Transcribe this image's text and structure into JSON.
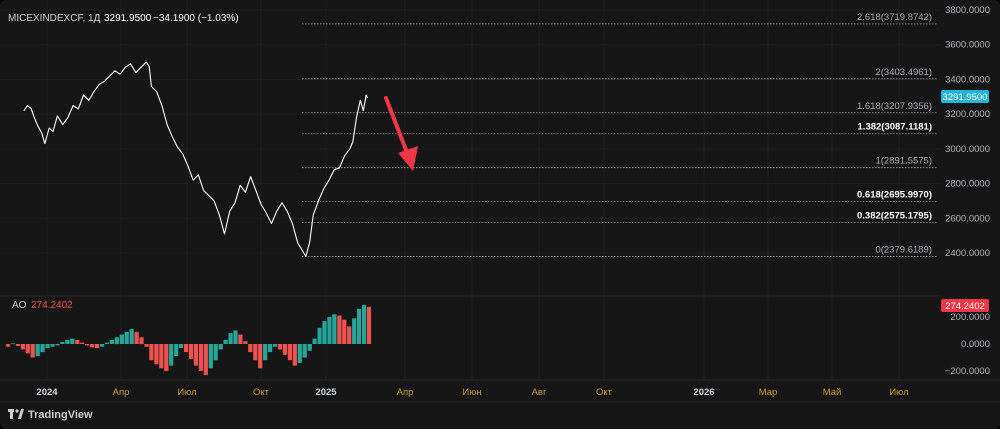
{
  "legend": {
    "symbol": "MICEXINDEXCF, 1Д",
    "price": "3291.9500",
    "change": "−34.1900 (−1.03%)"
  },
  "indicator": {
    "name": "AO",
    "value": "274.2402"
  },
  "price_axis": {
    "ticks": [
      "3800.0000",
      "3600.0000",
      "3400.0000",
      "3200.0000",
      "3000.0000",
      "2800.0000",
      "2600.0000",
      "2400.0000"
    ],
    "last_price_tag": "3291.9500"
  },
  "ao_axis": {
    "ticks": [
      "200.0000",
      "0.0000",
      "−200.0000"
    ],
    "value_tag": "274.2402"
  },
  "time_axis": {
    "labels": [
      "2024",
      "Апр",
      "Июл",
      "Окт",
      "2025",
      "Апр",
      "Июн",
      "Авг",
      "Окт",
      "2026",
      "Мар",
      "Май",
      "Июл"
    ],
    "bold": [
      "2024",
      "2025",
      "2026"
    ]
  },
  "fib_levels": [
    {
      "label": "2.618(3719.8742)",
      "value": 3719.8742,
      "bold": false
    },
    {
      "label": "2(3403.4961)",
      "value": 3403.4961,
      "bold": false
    },
    {
      "label": "1.618(3207.9356)",
      "value": 3207.9356,
      "bold": false
    },
    {
      "label": "1.382(3087.1181)",
      "value": 3087.1181,
      "bold": true
    },
    {
      "label": "1(2891.5575)",
      "value": 2891.5575,
      "bold": false
    },
    {
      "label": "0.618(2695.9970)",
      "value": 2695.997,
      "bold": true
    },
    {
      "label": "0.382(2575.1795)",
      "value": 2575.1795,
      "bold": true
    },
    {
      "label": "0(2379.6189)",
      "value": 2379.6189,
      "bold": false
    }
  ],
  "brand": "TradingView",
  "colors": {
    "background": "#161616",
    "price_line": "#ffffff",
    "fib_line": "#9aa0a6",
    "arrow": "#f23645",
    "ao_up": "#26a69a",
    "ao_down": "#ef5350",
    "last_price_tag": "#22b5d6",
    "ao_tag": "#f23645",
    "axis_text": "#b2b5be",
    "time_label": "#d19b2f"
  },
  "chart_data": {
    "type": "line",
    "series": [
      {
        "x": [
          "2023-12-01",
          "2023-12-06",
          "2023-12-11",
          "2023-12-15",
          "2023-12-20",
          "2023-12-25",
          "2023-12-29",
          "2024-01-04",
          "2024-01-09",
          "2024-01-15",
          "2024-01-22",
          "2024-01-29",
          "2024-02-05",
          "2024-02-12",
          "2024-02-19",
          "2024-02-26",
          "2024-03-04",
          "2024-03-11",
          "2024-03-18",
          "2024-03-25",
          "2024-04-01",
          "2024-04-08",
          "2024-04-15",
          "2024-04-22",
          "2024-04-29",
          "2024-05-06",
          "2024-05-13",
          "2024-05-17",
          "2024-05-20",
          "2024-05-27",
          "2024-06-03",
          "2024-06-10",
          "2024-06-17",
          "2024-06-24",
          "2024-07-01",
          "2024-07-08",
          "2024-07-15",
          "2024-07-22",
          "2024-07-29",
          "2024-08-05",
          "2024-08-12",
          "2024-08-19",
          "2024-08-26",
          "2024-09-02",
          "2024-09-09",
          "2024-09-16",
          "2024-09-23",
          "2024-09-30",
          "2024-10-07",
          "2024-10-14",
          "2024-10-21",
          "2024-10-28",
          "2024-11-04",
          "2024-11-11",
          "2024-11-18",
          "2024-11-25",
          "2024-12-02",
          "2024-12-09",
          "2024-12-13",
          "2024-12-18",
          "2024-12-23",
          "2024-12-30",
          "2025-01-06",
          "2025-01-13",
          "2025-01-20",
          "2025-01-27",
          "2025-02-03",
          "2025-02-10",
          "2025-02-14",
          "2025-02-19",
          "2025-02-24",
          "2025-02-28",
          "2025-03-04",
          "2025-03-06"
        ],
        "values": [
          3220,
          3250,
          3230,
          3180,
          3130,
          3090,
          3030,
          3120,
          3100,
          3190,
          3140,
          3180,
          3250,
          3230,
          3310,
          3280,
          3330,
          3370,
          3390,
          3420,
          3450,
          3430,
          3470,
          3490,
          3440,
          3470,
          3500,
          3475,
          3360,
          3330,
          3250,
          3140,
          3070,
          3010,
          2970,
          2900,
          2820,
          2850,
          2760,
          2730,
          2700,
          2620,
          2510,
          2640,
          2690,
          2790,
          2750,
          2840,
          2760,
          2680,
          2630,
          2570,
          2640,
          2690,
          2640,
          2570,
          2460,
          2410,
          2380,
          2460,
          2620,
          2700,
          2770,
          2820,
          2880,
          2890,
          2960,
          3000,
          3040,
          3180,
          3280,
          3220,
          3310,
          3291.95
        ]
      }
    ],
    "ylim": [
      2300,
      3800
    ],
    "ao": {
      "name": "AO",
      "last": 274.2402,
      "bars": [
        -20,
        5,
        -15,
        -40,
        -70,
        -100,
        -90,
        -60,
        -30,
        -20,
        -10,
        15,
        30,
        40,
        30,
        10,
        -10,
        -25,
        -30,
        -20,
        10,
        30,
        50,
        70,
        90,
        110,
        90,
        50,
        -20,
        -120,
        -150,
        -180,
        -200,
        -160,
        -90,
        -30,
        -60,
        -110,
        -160,
        -200,
        -230,
        -180,
        -120,
        -40,
        30,
        80,
        100,
        70,
        20,
        -60,
        -120,
        -180,
        -120,
        -60,
        -20,
        -40,
        -80,
        -120,
        -160,
        -140,
        -100,
        -50,
        40,
        120,
        170,
        200,
        220,
        210,
        180,
        130,
        190,
        260,
        290,
        274.24
      ],
      "ylim": [
        -230,
        310
      ]
    }
  }
}
